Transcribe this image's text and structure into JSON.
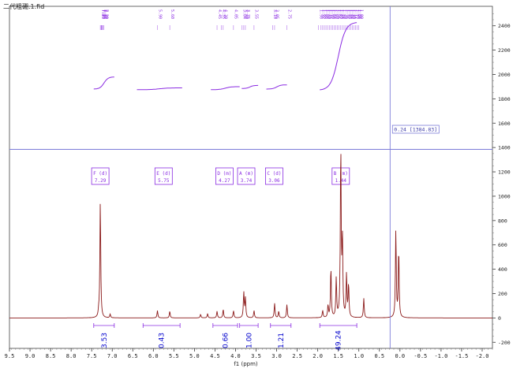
{
  "window": {
    "file_title": "二代粗硼.1.fid"
  },
  "chart_data": {
    "type": "line",
    "title": "",
    "xlabel": "f1 (ppm)",
    "ylabel": "",
    "xlim": [
      9.5,
      -2.25
    ],
    "ylim": [
      -250,
      2560
    ],
    "x_ticks": [
      "9.5",
      "9.0",
      "8.5",
      "8.0",
      "7.5",
      "7.0",
      "6.5",
      "6.0",
      "5.5",
      "5.0",
      "4.5",
      "4.0",
      "3.5",
      "3.0",
      "2.5",
      "2.0",
      "1.5",
      "1.0",
      "0.5",
      "0.0",
      "-0.5",
      "-1.0",
      "-1.5",
      "-2.0"
    ],
    "y_ticks": [
      "-200",
      "0",
      "200",
      "400",
      "600",
      "800",
      "1000",
      "1200",
      "1400",
      "1600",
      "1800",
      "2000",
      "2200",
      "2400"
    ],
    "colors": {
      "spectrum": "#8b1a1a",
      "integral": "#8a2be2",
      "label": "#8a2be2",
      "integral_value": "#0000cd",
      "cursor": "#7b7bd8"
    },
    "peaks": [
      {
        "x": 7.29,
        "y": 960
      },
      {
        "x": 7.33,
        "y": 40
      },
      {
        "x": 7.05,
        "y": 30
      },
      {
        "x": 5.9,
        "y": 60
      },
      {
        "x": 5.6,
        "y": 55
      },
      {
        "x": 4.85,
        "y": 30
      },
      {
        "x": 4.68,
        "y": 35
      },
      {
        "x": 4.45,
        "y": 55
      },
      {
        "x": 4.3,
        "y": 70
      },
      {
        "x": 4.05,
        "y": 60
      },
      {
        "x": 3.8,
        "y": 210
      },
      {
        "x": 3.76,
        "y": 160
      },
      {
        "x": 3.55,
        "y": 60
      },
      {
        "x": 3.05,
        "y": 120
      },
      {
        "x": 2.95,
        "y": 55
      },
      {
        "x": 2.75,
        "y": 110
      },
      {
        "x": 1.88,
        "y": 60
      },
      {
        "x": 1.75,
        "y": 100
      },
      {
        "x": 1.68,
        "y": 410
      },
      {
        "x": 1.55,
        "y": 320
      },
      {
        "x": 1.44,
        "y": 1400
      },
      {
        "x": 1.4,
        "y": 620
      },
      {
        "x": 1.3,
        "y": 350
      },
      {
        "x": 1.25,
        "y": 270
      },
      {
        "x": 0.88,
        "y": 160
      },
      {
        "x": 0.1,
        "y": 720
      },
      {
        "x": 0.03,
        "y": 560
      }
    ],
    "integrals": [
      {
        "from": 7.45,
        "to": 6.95,
        "value": "3.53"
      },
      {
        "from": 6.25,
        "to": 5.35,
        "value": "0.43"
      },
      {
        "from": 4.55,
        "to": 3.95,
        "value": "0.66"
      },
      {
        "from": 3.9,
        "to": 3.45,
        "value": "1.00"
      },
      {
        "from": 3.15,
        "to": 2.65,
        "value": "1.21"
      },
      {
        "from": 1.95,
        "to": 1.05,
        "value": "49.24"
      }
    ],
    "integral_curves": [
      {
        "from": 7.45,
        "to": 6.95,
        "y0": 1880,
        "y1": 1980
      },
      {
        "from": 6.4,
        "to": 5.3,
        "y0": 1875,
        "y1": 1890
      },
      {
        "from": 4.6,
        "to": 3.9,
        "y0": 1875,
        "y1": 1900
      },
      {
        "from": 3.85,
        "to": 3.45,
        "y0": 1885,
        "y1": 1910
      },
      {
        "from": 3.25,
        "to": 2.75,
        "y0": 1880,
        "y1": 1915
      },
      {
        "from": 1.95,
        "to": 1.05,
        "y0": 1870,
        "y1": 2430
      }
    ],
    "multiplets": [
      {
        "id": "F (d)",
        "shift": "7.29",
        "x": 7.29
      },
      {
        "id": "E (d)",
        "shift": "5.75",
        "x": 5.75
      },
      {
        "id": "D (m)",
        "shift": "4.27",
        "x": 4.27
      },
      {
        "id": "A (m)",
        "shift": "3.74",
        "x": 3.74
      },
      {
        "id": "C (d)",
        "shift": "3.06",
        "x": 3.06
      },
      {
        "id": "B (m)",
        "shift": "1.44",
        "x": 1.44
      }
    ],
    "peak_labels": [
      {
        "x": 7.29,
        "text": "7.29"
      },
      {
        "x": 7.27,
        "text": "7.27"
      },
      {
        "x": 7.26,
        "text": "7.26"
      },
      {
        "x": 7.24,
        "text": "7.24"
      },
      {
        "x": 7.22,
        "text": "7.22"
      },
      {
        "x": 7.2,
        "text": "7.20"
      },
      {
        "x": 5.9,
        "text": "5.90"
      },
      {
        "x": 5.6,
        "text": "5.60"
      },
      {
        "x": 4.45,
        "text": "4.45"
      },
      {
        "x": 4.35,
        "text": "4.35"
      },
      {
        "x": 4.3,
        "text": "4.30"
      },
      {
        "x": 4.05,
        "text": "4.05"
      },
      {
        "x": 3.84,
        "text": "3.84"
      },
      {
        "x": 3.8,
        "text": "3.80"
      },
      {
        "x": 3.76,
        "text": "3.76"
      },
      {
        "x": 3.55,
        "text": "3.55"
      },
      {
        "x": 3.1,
        "text": "3.10"
      },
      {
        "x": 3.05,
        "text": "3.05"
      },
      {
        "x": 2.75,
        "text": "2.75"
      },
      {
        "x": 1.98,
        "text": "1.98"
      },
      {
        "x": 1.92,
        "text": "1.92"
      },
      {
        "x": 1.88,
        "text": "1.88"
      },
      {
        "x": 1.84,
        "text": "1.84"
      },
      {
        "x": 1.8,
        "text": "1.80"
      },
      {
        "x": 1.76,
        "text": "1.76"
      },
      {
        "x": 1.72,
        "text": "1.72"
      },
      {
        "x": 1.68,
        "text": "1.68"
      },
      {
        "x": 1.64,
        "text": "1.64"
      },
      {
        "x": 1.6,
        "text": "1.60"
      },
      {
        "x": 1.56,
        "text": "1.56"
      },
      {
        "x": 1.52,
        "text": "1.52"
      },
      {
        "x": 1.48,
        "text": "1.48"
      },
      {
        "x": 1.44,
        "text": "1.44"
      },
      {
        "x": 1.4,
        "text": "1.40"
      },
      {
        "x": 1.36,
        "text": "1.36"
      },
      {
        "x": 1.32,
        "text": "1.32"
      },
      {
        "x": 1.28,
        "text": "1.28"
      },
      {
        "x": 1.24,
        "text": "1.24"
      },
      {
        "x": 1.2,
        "text": "1.20"
      },
      {
        "x": 1.16,
        "text": "1.16"
      },
      {
        "x": 1.12,
        "text": "1.12"
      },
      {
        "x": 1.08,
        "text": "1.08"
      },
      {
        "x": 1.04,
        "text": "1.04"
      },
      {
        "x": 1.0,
        "text": "1.00"
      }
    ],
    "cursor": {
      "x": 0.24,
      "y": 1384.83,
      "readout": "0.24 [1384.83]"
    }
  }
}
